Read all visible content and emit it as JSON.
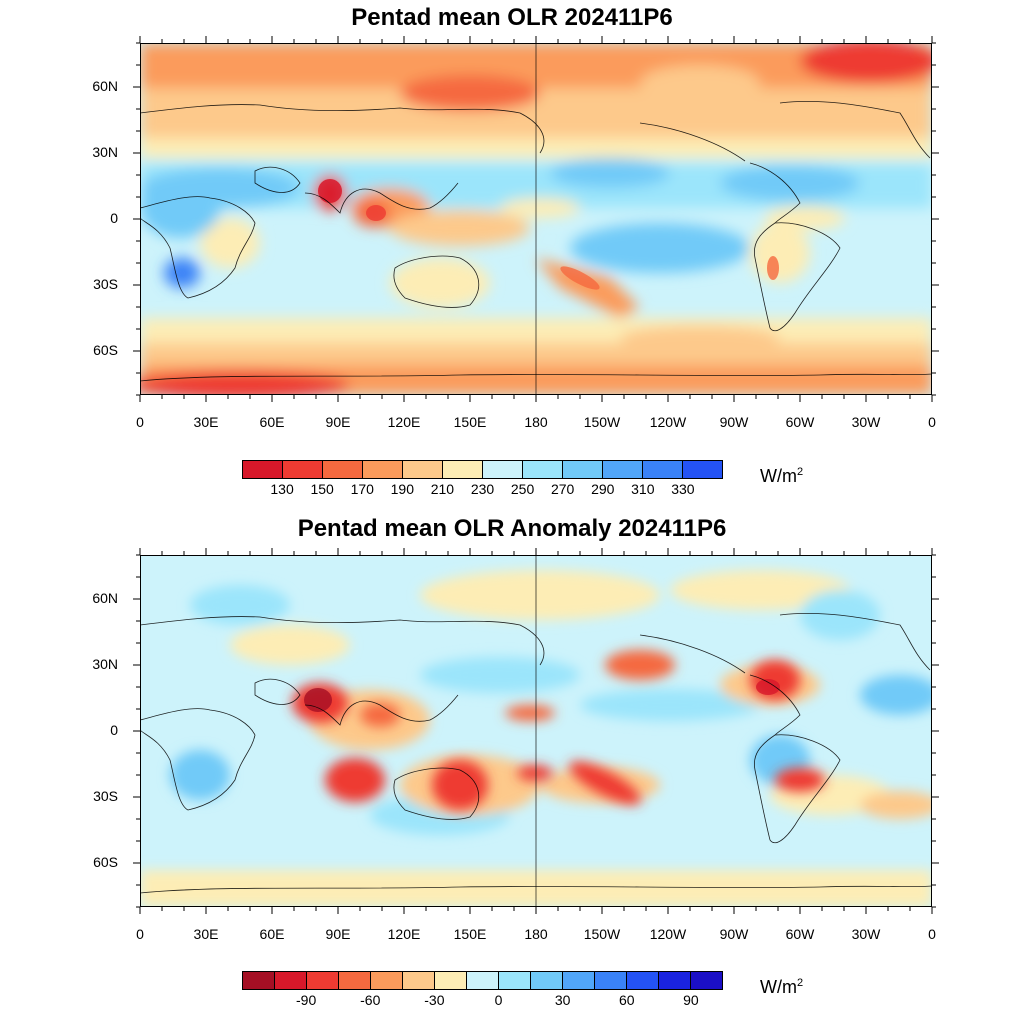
{
  "map1": {
    "title": "Pentad mean OLR 202411P6",
    "lat_labels": [
      "60N",
      "30N",
      "0",
      "30S",
      "60S"
    ],
    "lon_labels": [
      "0",
      "30E",
      "60E",
      "90E",
      "120E",
      "150E",
      "180",
      "150W",
      "120W",
      "90W",
      "60W",
      "30W",
      "0"
    ],
    "colorbar": {
      "colors": [
        "#d7182a",
        "#ee3b32",
        "#f5693f",
        "#fb9b5c",
        "#fdc98b",
        "#fdedb5",
        "#cdf3fb",
        "#9be5fb",
        "#71caf8",
        "#51a6f9",
        "#3a82f7",
        "#2453f5"
      ],
      "labels": [
        "130",
        "150",
        "170",
        "190",
        "210",
        "230",
        "250",
        "270",
        "290",
        "310",
        "330"
      ],
      "unit": "W/m",
      "unit_sup": "2"
    }
  },
  "map2": {
    "title": "Pentad mean OLR Anomaly 202411P6",
    "lat_labels": [
      "60N",
      "30N",
      "0",
      "30S",
      "60S"
    ],
    "lon_labels": [
      "0",
      "30E",
      "60E",
      "90E",
      "120E",
      "150E",
      "180",
      "150W",
      "120W",
      "90W",
      "60W",
      "30W",
      "0"
    ],
    "colorbar": {
      "colors": [
        "#a50f24",
        "#d7182a",
        "#ee3b32",
        "#f5693f",
        "#fb9b5c",
        "#fdc98b",
        "#fdedb5",
        "#cdf3fb",
        "#9be5fb",
        "#71caf8",
        "#51a6f9",
        "#3a82f7",
        "#2453f5",
        "#1a23e0",
        "#1b0fc6"
      ],
      "labels": [
        "-90",
        "-60",
        "-30",
        "0",
        "30",
        "60",
        "90"
      ],
      "unit": "W/m",
      "unit_sup": "2"
    }
  }
}
